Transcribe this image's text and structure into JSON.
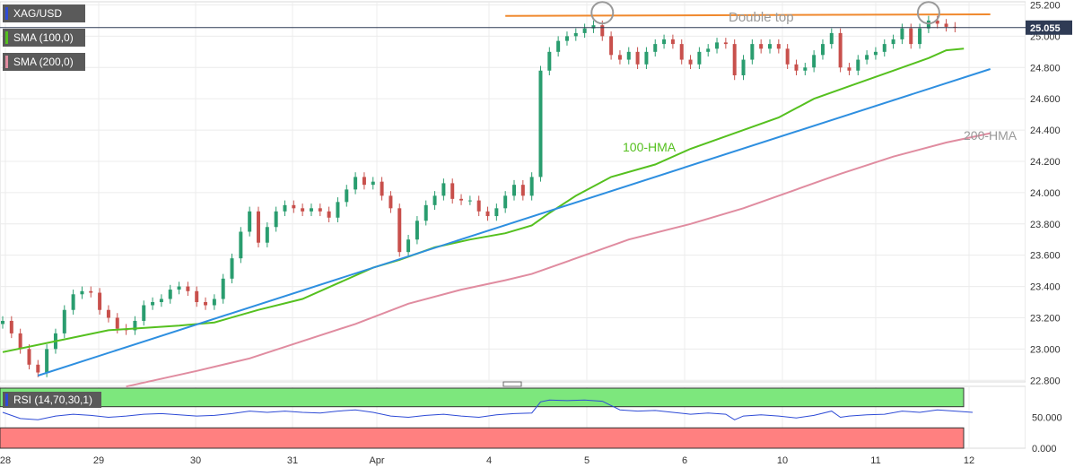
{
  "instrument": "XAG/USD",
  "indicators": {
    "sma100": {
      "label": "SMA (100,0)",
      "color": "#55c01f"
    },
    "sma200": {
      "label": "SMA (200,0)",
      "color": "#e08ca0"
    },
    "rsi": {
      "label": "RSI (14,70,30,1)",
      "color": "#2e4bd6"
    }
  },
  "annotations": {
    "double_top": "Double top",
    "hma100": "100-HMA",
    "hma200": "200-HMA"
  },
  "price_label": "25.055",
  "colors": {
    "up": "#2a9d6f",
    "down": "#c8504c",
    "trend": "#2e8fe0",
    "resistance": "#f0892e",
    "price_line": "#2f3b55",
    "overbought": "#7de77d",
    "oversold": "#ff8080"
  },
  "chart_data": {
    "type": "line",
    "title": "XAG/USD",
    "x_tick_labels": [
      "28",
      "29",
      "30",
      "31",
      "Apr",
      "4",
      "5",
      "6",
      "10",
      "11",
      "12"
    ],
    "y_ticks": [
      25.2,
      25.0,
      24.8,
      24.6,
      24.4,
      24.2,
      24.0,
      23.8,
      23.6,
      23.4,
      23.2,
      23.0,
      22.8
    ],
    "y_tick_labels": [
      "25.200",
      "25.000",
      "24.800",
      "24.600",
      "24.400",
      "24.200",
      "24.000",
      "23.800",
      "23.600",
      "23.400",
      "23.200",
      "23.000",
      "22.800"
    ],
    "ylim": [
      22.79,
      25.22
    ],
    "xlim": [
      0,
      116
    ],
    "close_series": [
      [
        0,
        23.18
      ],
      [
        1,
        23.1
      ],
      [
        2,
        23.0
      ],
      [
        3,
        22.9
      ],
      [
        4,
        22.85
      ],
      [
        5,
        23.0
      ],
      [
        6,
        23.1
      ],
      [
        7,
        23.25
      ],
      [
        8,
        23.35
      ],
      [
        9,
        23.37
      ],
      [
        10,
        23.36
      ],
      [
        11,
        23.25
      ],
      [
        12,
        23.2
      ],
      [
        13,
        23.13
      ],
      [
        14,
        23.12
      ],
      [
        15,
        23.18
      ],
      [
        16,
        23.28
      ],
      [
        17,
        23.3
      ],
      [
        18,
        23.32
      ],
      [
        19,
        23.38
      ],
      [
        20,
        23.4
      ],
      [
        21,
        23.37
      ],
      [
        22,
        23.3
      ],
      [
        23,
        23.28
      ],
      [
        24,
        23.32
      ],
      [
        25,
        23.45
      ],
      [
        26,
        23.58
      ],
      [
        27,
        23.75
      ],
      [
        28,
        23.88
      ],
      [
        29,
        23.68
      ],
      [
        30,
        23.78
      ],
      [
        31,
        23.88
      ],
      [
        32,
        23.92
      ],
      [
        33,
        23.9
      ],
      [
        34,
        23.88
      ],
      [
        35,
        23.9
      ],
      [
        36,
        23.88
      ],
      [
        37,
        23.84
      ],
      [
        38,
        23.94
      ],
      [
        39,
        24.02
      ],
      [
        40,
        24.1
      ],
      [
        41,
        24.05
      ],
      [
        42,
        24.07
      ],
      [
        43,
        23.98
      ],
      [
        44,
        23.9
      ],
      [
        45,
        23.62
      ],
      [
        46,
        23.7
      ],
      [
        47,
        23.82
      ],
      [
        48,
        23.92
      ],
      [
        49,
        23.98
      ],
      [
        50,
        24.06
      ],
      [
        51,
        23.96
      ],
      [
        52,
        23.95
      ],
      [
        53,
        23.95
      ],
      [
        54,
        23.88
      ],
      [
        55,
        23.85
      ],
      [
        56,
        23.9
      ],
      [
        57,
        23.98
      ],
      [
        58,
        24.05
      ],
      [
        59,
        23.98
      ],
      [
        60,
        24.1
      ],
      [
        61,
        24.78
      ],
      [
        62,
        24.9
      ],
      [
        63,
        24.97
      ],
      [
        64,
        25.0
      ],
      [
        65,
        25.02
      ],
      [
        66,
        25.05
      ],
      [
        67,
        25.07
      ],
      [
        68,
        25.0
      ],
      [
        69,
        24.88
      ],
      [
        70,
        24.85
      ],
      [
        71,
        24.9
      ],
      [
        72,
        24.82
      ],
      [
        73,
        24.9
      ],
      [
        74,
        24.95
      ],
      [
        75,
        24.98
      ],
      [
        76,
        24.95
      ],
      [
        77,
        24.85
      ],
      [
        78,
        24.82
      ],
      [
        79,
        24.9
      ],
      [
        80,
        24.92
      ],
      [
        81,
        24.96
      ],
      [
        82,
        24.95
      ],
      [
        83,
        24.75
      ],
      [
        84,
        24.85
      ],
      [
        85,
        24.95
      ],
      [
        86,
        24.92
      ],
      [
        87,
        24.95
      ],
      [
        88,
        24.92
      ],
      [
        89,
        24.82
      ],
      [
        90,
        24.78
      ],
      [
        91,
        24.8
      ],
      [
        92,
        24.88
      ],
      [
        93,
        24.95
      ],
      [
        94,
        25.02
      ],
      [
        95,
        24.8
      ],
      [
        96,
        24.78
      ],
      [
        97,
        24.85
      ],
      [
        98,
        24.88
      ],
      [
        99,
        24.9
      ],
      [
        100,
        24.95
      ],
      [
        101,
        24.98
      ],
      [
        102,
        25.05
      ],
      [
        103,
        24.95
      ],
      [
        104,
        25.05
      ],
      [
        105,
        25.1
      ],
      [
        106,
        25.08
      ],
      [
        107,
        25.06
      ],
      [
        108,
        25.055
      ]
    ],
    "series": [
      {
        "name": "100-HMA",
        "color": "#55c01f",
        "values": [
          [
            0,
            22.98
          ],
          [
            6,
            23.05
          ],
          [
            12,
            23.12
          ],
          [
            20,
            23.15
          ],
          [
            24,
            23.17
          ],
          [
            29,
            23.25
          ],
          [
            34,
            23.32
          ],
          [
            38,
            23.42
          ],
          [
            42,
            23.52
          ],
          [
            45,
            23.57
          ],
          [
            49,
            23.65
          ],
          [
            53,
            23.7
          ],
          [
            57,
            23.74
          ],
          [
            60,
            23.79
          ],
          [
            62,
            23.87
          ],
          [
            65,
            23.98
          ],
          [
            69,
            24.1
          ],
          [
            74,
            24.18
          ],
          [
            78,
            24.28
          ],
          [
            83,
            24.38
          ],
          [
            88,
            24.48
          ],
          [
            92,
            24.6
          ],
          [
            96,
            24.68
          ],
          [
            101,
            24.78
          ],
          [
            105,
            24.86
          ],
          [
            107,
            24.91
          ],
          [
            109,
            24.92
          ]
        ]
      },
      {
        "name": "200-HMA",
        "color": "#e08ca0",
        "values": [
          [
            14,
            22.76
          ],
          [
            22,
            22.86
          ],
          [
            28,
            22.94
          ],
          [
            34,
            23.05
          ],
          [
            40,
            23.16
          ],
          [
            46,
            23.29
          ],
          [
            52,
            23.38
          ],
          [
            57,
            23.44
          ],
          [
            60,
            23.48
          ],
          [
            65,
            23.58
          ],
          [
            71,
            23.7
          ],
          [
            78,
            23.8
          ],
          [
            84,
            23.9
          ],
          [
            90,
            24.02
          ],
          [
            95,
            24.12
          ],
          [
            101,
            24.23
          ],
          [
            107,
            24.32
          ],
          [
            112,
            24.38
          ]
        ]
      },
      {
        "name": "Trend line",
        "color": "#2e8fe0",
        "values": [
          [
            4,
            22.83
          ],
          [
            112,
            24.79
          ]
        ]
      },
      {
        "name": "Resistance",
        "color": "#f0892e",
        "values": [
          [
            57,
            25.13
          ],
          [
            112,
            25.14
          ]
        ]
      }
    ],
    "double_top_markers": [
      [
        68,
        25.15
      ],
      [
        105,
        25.15
      ]
    ],
    "current_price": 25.055,
    "rsi": {
      "y_ticks": [
        50,
        0
      ],
      "y_tick_labels": [
        "50.000",
        "0.000"
      ],
      "ylim": [
        0,
        100
      ],
      "overbought": 70,
      "oversold": 30,
      "values": [
        [
          0,
          58
        ],
        [
          2,
          48
        ],
        [
          4,
          46
        ],
        [
          6,
          52
        ],
        [
          8,
          55
        ],
        [
          10,
          53
        ],
        [
          12,
          50
        ],
        [
          14,
          52
        ],
        [
          16,
          55
        ],
        [
          18,
          56
        ],
        [
          20,
          54
        ],
        [
          22,
          52
        ],
        [
          24,
          53
        ],
        [
          26,
          56
        ],
        [
          28,
          60
        ],
        [
          30,
          58
        ],
        [
          32,
          60
        ],
        [
          34,
          58
        ],
        [
          36,
          57
        ],
        [
          38,
          60
        ],
        [
          40,
          62
        ],
        [
          42,
          58
        ],
        [
          44,
          52
        ],
        [
          46,
          50
        ],
        [
          48,
          53
        ],
        [
          50,
          55
        ],
        [
          52,
          52
        ],
        [
          54,
          50
        ],
        [
          56,
          54
        ],
        [
          58,
          56
        ],
        [
          60,
          57
        ],
        [
          61,
          75
        ],
        [
          62,
          78
        ],
        [
          64,
          77
        ],
        [
          66,
          78
        ],
        [
          68,
          76
        ],
        [
          70,
          62
        ],
        [
          72,
          60
        ],
        [
          74,
          61
        ],
        [
          76,
          58
        ],
        [
          78,
          55
        ],
        [
          80,
          57
        ],
        [
          82,
          55
        ],
        [
          83,
          46
        ],
        [
          84,
          52
        ],
        [
          86,
          54
        ],
        [
          88,
          52
        ],
        [
          90,
          49
        ],
        [
          92,
          53
        ],
        [
          94,
          60
        ],
        [
          95,
          50
        ],
        [
          96,
          52
        ],
        [
          98,
          54
        ],
        [
          100,
          55
        ],
        [
          102,
          60
        ],
        [
          104,
          58
        ],
        [
          106,
          62
        ],
        [
          108,
          60
        ],
        [
          110,
          58
        ]
      ]
    }
  }
}
